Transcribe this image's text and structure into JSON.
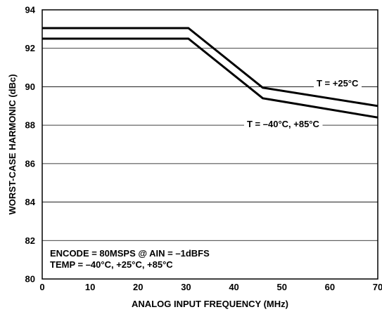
{
  "chart_data": {
    "type": "line",
    "title": "",
    "xlabel": "ANALOG INPUT FREQUENCY (MHz)",
    "ylabel": "WORST-CASE HARMONIC (dBc)",
    "xlim": [
      0,
      70
    ],
    "ylim": [
      80,
      94
    ],
    "xticks": [
      0,
      10,
      20,
      30,
      40,
      50,
      60,
      70
    ],
    "yticks": [
      80,
      82,
      84,
      86,
      88,
      90,
      92,
      94
    ],
    "grid": "horizontal",
    "series": [
      {
        "name": "T = +25°C",
        "x": [
          0,
          30.5,
          46,
          70
        ],
        "y": [
          93.05,
          93.05,
          89.95,
          89.0
        ]
      },
      {
        "name": "T = –40°C, +85°C",
        "x": [
          0,
          30.5,
          46,
          70
        ],
        "y": [
          92.5,
          92.5,
          89.4,
          88.4
        ]
      }
    ],
    "annotations": [
      "ENCODE = 80MSPS @ AIN = –1dBFS",
      "TEMP = –40°C, +25°C, +85°C"
    ]
  }
}
